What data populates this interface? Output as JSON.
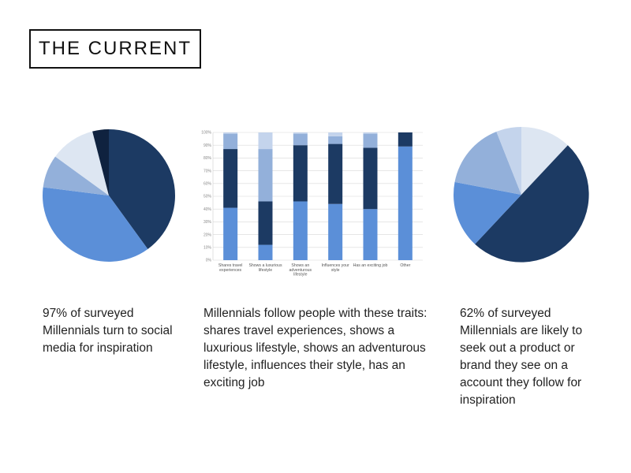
{
  "header": {
    "title": "THE CURRENT"
  },
  "captions": {
    "left": "97% of surveyed Millennials turn to social media for inspiration",
    "middle": "Millennials follow people with these traits: shares travel experiences, shows a luxurious lifestyle, shows an adventurous lifestyle, influences their style, has an exciting job",
    "right": "62% of surveyed Millennials are likely to seek out a product or brand they see on a account they follow for inspiration"
  },
  "chart_data": [
    {
      "type": "pie",
      "slices": [
        {
          "value": 40,
          "color": "#1c3a63"
        },
        {
          "value": 37,
          "color": "#5b8fd8"
        },
        {
          "value": 8,
          "color": "#93b0da"
        },
        {
          "value": 11,
          "color": "#dde6f2"
        },
        {
          "value": 4,
          "color": "#0f223f"
        }
      ]
    },
    {
      "type": "bar",
      "stacked": true,
      "categories": [
        [
          "Shares travel",
          "experiences"
        ],
        [
          "Shows a luxurious",
          "lifestyle"
        ],
        [
          "Shows an",
          "adventurous",
          "lifestyle"
        ],
        [
          "Influences your",
          "style"
        ],
        [
          "Has an exciting job"
        ],
        [
          "Other"
        ]
      ],
      "yticks": [
        "0%",
        "10%",
        "20%",
        "30%",
        "40%",
        "50%",
        "60%",
        "70%",
        "80%",
        "90%",
        "100%"
      ],
      "ylim": [
        0,
        100
      ],
      "series": [
        {
          "values": [
            41,
            12,
            46,
            44,
            40,
            89
          ],
          "color": "#5b8fd8"
        },
        {
          "values": [
            46,
            34,
            44,
            47,
            48,
            11
          ],
          "color": "#1c3a63"
        },
        {
          "values": [
            12,
            41,
            9,
            6,
            11,
            0
          ],
          "color": "#93b0da"
        },
        {
          "values": [
            1,
            13,
            1,
            3,
            1,
            0
          ],
          "color": "#c4d4ec"
        }
      ]
    },
    {
      "type": "pie",
      "slices": [
        {
          "value": 12,
          "color": "#dde6f2"
        },
        {
          "value": 50,
          "color": "#1c3a63"
        },
        {
          "value": 16,
          "color": "#5b8fd8"
        },
        {
          "value": 16,
          "color": "#93b0da"
        },
        {
          "value": 6,
          "color": "#c4d4ec"
        }
      ]
    }
  ]
}
